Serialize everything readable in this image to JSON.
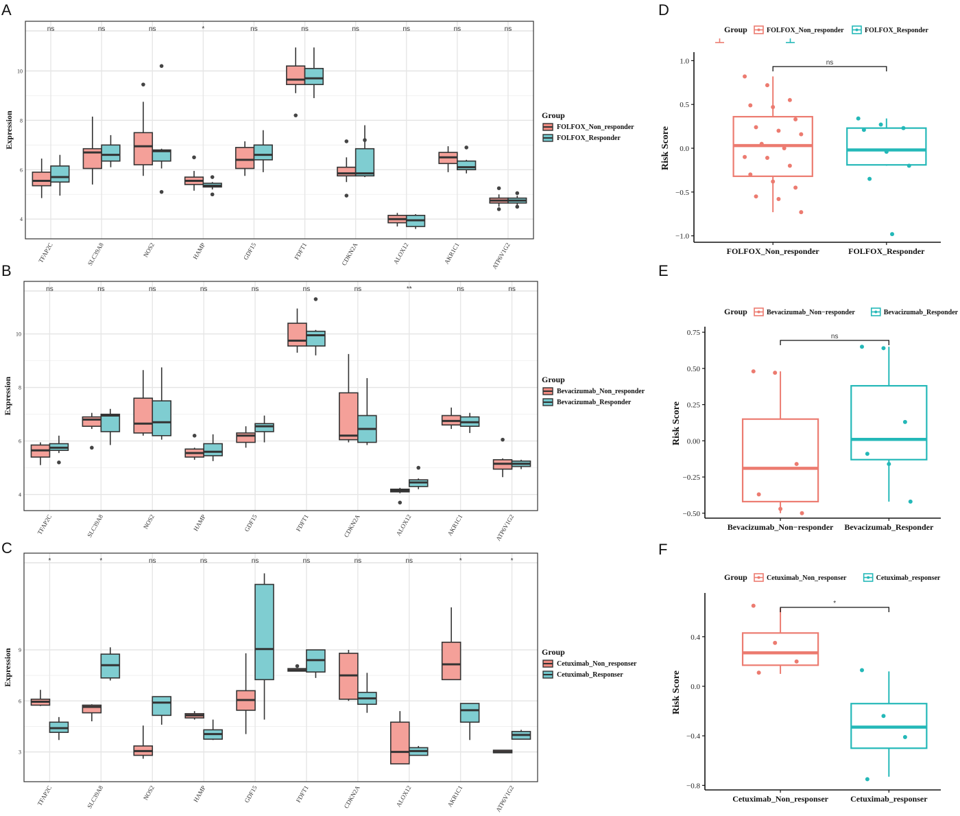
{
  "chart_data": [
    {
      "panel": "A",
      "type": "boxplot",
      "ylabel": "Expression",
      "ylim": [
        3.2,
        11.4
      ],
      "yticks": [
        4,
        6,
        8,
        10
      ],
      "legend": {
        "title": "Group",
        "items": [
          "FOLFOX_Non_responder",
          "FOLFOX_Responder"
        ],
        "colors": [
          "#F08A80",
          "#72C7CC"
        ]
      },
      "genes": [
        "TFAP2C",
        "SLC39A8",
        "NOS2",
        "HAMP",
        "GDF15",
        "FDFT1",
        "CDKN2A",
        "ALOX12",
        "AKR1C1",
        "ATP6V1G2"
      ],
      "significance": [
        "ns",
        "ns",
        "ns",
        "*",
        "ns",
        "ns",
        "ns",
        "ns",
        "ns",
        "ns"
      ],
      "series": [
        {
          "name": "FOLFOX_Non_responder",
          "boxes": [
            {
              "q1": 5.35,
              "median": 5.55,
              "q3": 5.9,
              "lo": 4.85,
              "hi": 6.45,
              "out": []
            },
            {
              "q1": 6.05,
              "median": 6.7,
              "q3": 6.85,
              "lo": 5.4,
              "hi": 8.15,
              "out": []
            },
            {
              "q1": 6.2,
              "median": 6.95,
              "q3": 7.5,
              "lo": 5.75,
              "hi": 8.75,
              "out": [
                9.45
              ]
            },
            {
              "q1": 5.4,
              "median": 5.55,
              "q3": 5.7,
              "lo": 5.15,
              "hi": 5.95,
              "out": [
                6.5
              ]
            },
            {
              "q1": 6.05,
              "median": 6.4,
              "q3": 6.9,
              "lo": 5.75,
              "hi": 7.15,
              "out": []
            },
            {
              "q1": 9.45,
              "median": 9.65,
              "q3": 10.2,
              "lo": 9.1,
              "hi": 10.95,
              "out": [
                8.2
              ]
            },
            {
              "q1": 5.75,
              "median": 5.85,
              "q3": 6.1,
              "lo": 5.5,
              "hi": 6.5,
              "out": [
                4.95,
                7.15
              ]
            },
            {
              "q1": 3.85,
              "median": 4.0,
              "q3": 4.15,
              "lo": 3.7,
              "hi": 4.25,
              "out": []
            },
            {
              "q1": 6.25,
              "median": 6.5,
              "q3": 6.7,
              "lo": 5.9,
              "hi": 6.95,
              "out": []
            },
            {
              "q1": 4.65,
              "median": 4.75,
              "q3": 4.85,
              "lo": 4.5,
              "hi": 5.0,
              "out": [
                4.4,
                5.25
              ]
            }
          ]
        },
        {
          "name": "FOLFOX_Responder",
          "boxes": [
            {
              "q1": 5.5,
              "median": 5.7,
              "q3": 6.15,
              "lo": 4.95,
              "hi": 6.6,
              "out": []
            },
            {
              "q1": 6.35,
              "median": 6.6,
              "q3": 7.0,
              "lo": 6.1,
              "hi": 7.4,
              "out": []
            },
            {
              "q1": 6.35,
              "median": 6.75,
              "q3": 6.8,
              "lo": 6.05,
              "hi": 6.85,
              "out": [
                5.1,
                10.2
              ]
            },
            {
              "q1": 5.3,
              "median": 5.35,
              "q3": 5.45,
              "lo": 5.2,
              "hi": 5.5,
              "out": [
                5.0,
                5.7
              ]
            },
            {
              "q1": 6.4,
              "median": 6.6,
              "q3": 7.0,
              "lo": 5.9,
              "hi": 7.6,
              "out": []
            },
            {
              "q1": 9.45,
              "median": 9.7,
              "q3": 10.1,
              "lo": 8.9,
              "hi": 10.95,
              "out": []
            },
            {
              "q1": 5.75,
              "median": 5.85,
              "q3": 6.85,
              "lo": 5.7,
              "hi": 7.8,
              "out": [
                7.2
              ]
            },
            {
              "q1": 3.7,
              "median": 3.95,
              "q3": 4.15,
              "lo": 3.6,
              "hi": 4.2,
              "out": []
            },
            {
              "q1": 6.0,
              "median": 6.1,
              "q3": 6.35,
              "lo": 5.85,
              "hi": 6.4,
              "out": [
                6.9
              ]
            },
            {
              "q1": 4.65,
              "median": 4.75,
              "q3": 4.85,
              "lo": 4.55,
              "hi": 4.95,
              "out": [
                4.5,
                5.05
              ]
            }
          ]
        }
      ]
    },
    {
      "panel": "B",
      "type": "boxplot",
      "ylabel": "Expression",
      "ylim": [
        3.4,
        11.4
      ],
      "yticks": [
        4,
        6,
        8,
        10
      ],
      "legend": {
        "title": "Group",
        "items": [
          "Bevacizumab_Non_responder",
          "Bevacizumab_Responder"
        ],
        "colors": [
          "#F08A80",
          "#72C7CC"
        ]
      },
      "genes": [
        "TFAP2C",
        "SLC39A8",
        "NOS2",
        "HAMP",
        "GDF15",
        "FDFT1",
        "CDKN2A",
        "ALOX12",
        "AKR1C1",
        "ATP6V1G2"
      ],
      "significance": [
        "ns",
        "ns",
        "ns",
        "ns",
        "ns",
        "ns",
        "ns",
        "**",
        "ns",
        "ns"
      ],
      "series": [
        {
          "name": "Bevacizumab_Non_responder",
          "boxes": [
            {
              "q1": 5.4,
              "median": 5.65,
              "q3": 5.85,
              "lo": 5.1,
              "hi": 5.95,
              "out": []
            },
            {
              "q1": 6.55,
              "median": 6.8,
              "q3": 6.9,
              "lo": 6.45,
              "hi": 7.05,
              "out": [
                5.75
              ]
            },
            {
              "q1": 6.3,
              "median": 6.65,
              "q3": 7.6,
              "lo": 6.2,
              "hi": 8.65,
              "out": []
            },
            {
              "q1": 5.4,
              "median": 5.55,
              "q3": 5.7,
              "lo": 5.3,
              "hi": 5.75,
              "out": [
                6.2
              ]
            },
            {
              "q1": 5.95,
              "median": 6.2,
              "q3": 6.3,
              "lo": 5.75,
              "hi": 6.55,
              "out": []
            },
            {
              "q1": 9.55,
              "median": 9.75,
              "q3": 10.4,
              "lo": 9.3,
              "hi": 10.95,
              "out": []
            },
            {
              "q1": 6.05,
              "median": 6.2,
              "q3": 7.8,
              "lo": 5.95,
              "hi": 9.25,
              "out": []
            },
            {
              "q1": 4.1,
              "median": 4.15,
              "q3": 4.2,
              "lo": 4.05,
              "hi": 4.25,
              "out": [
                3.7
              ]
            },
            {
              "q1": 6.6,
              "median": 6.75,
              "q3": 6.95,
              "lo": 6.45,
              "hi": 7.25,
              "out": []
            },
            {
              "q1": 4.95,
              "median": 5.15,
              "q3": 5.3,
              "lo": 4.65,
              "hi": 5.35,
              "out": [
                6.05
              ]
            }
          ]
        },
        {
          "name": "Bevacizumab_Responder",
          "boxes": [
            {
              "q1": 5.65,
              "median": 5.75,
              "q3": 5.9,
              "lo": 5.55,
              "hi": 6.2,
              "out": [
                5.2
              ]
            },
            {
              "q1": 6.35,
              "median": 6.95,
              "q3": 7.0,
              "lo": 5.85,
              "hi": 7.2,
              "out": []
            },
            {
              "q1": 6.2,
              "median": 6.7,
              "q3": 7.5,
              "lo": 6.05,
              "hi": 8.75,
              "out": []
            },
            {
              "q1": 5.45,
              "median": 5.6,
              "q3": 5.9,
              "lo": 5.25,
              "hi": 6.25,
              "out": []
            },
            {
              "q1": 6.35,
              "median": 6.55,
              "q3": 6.65,
              "lo": 5.95,
              "hi": 6.95,
              "out": []
            },
            {
              "q1": 9.55,
              "median": 9.95,
              "q3": 10.1,
              "lo": 9.2,
              "hi": 10.15,
              "out": [
                11.3
              ]
            },
            {
              "q1": 5.95,
              "median": 6.45,
              "q3": 6.95,
              "lo": 5.85,
              "hi": 8.35,
              "out": []
            },
            {
              "q1": 4.3,
              "median": 4.45,
              "q3": 4.55,
              "lo": 4.2,
              "hi": 4.6,
              "out": [
                5.0
              ]
            },
            {
              "q1": 6.55,
              "median": 6.7,
              "q3": 6.9,
              "lo": 6.3,
              "hi": 7.05,
              "out": []
            },
            {
              "q1": 5.05,
              "median": 5.15,
              "q3": 5.25,
              "lo": 4.95,
              "hi": 5.3,
              "out": []
            }
          ]
        }
      ]
    },
    {
      "panel": "C",
      "type": "boxplot",
      "ylabel": "Expression",
      "ylim": [
        1.25,
        13.8
      ],
      "yticks": [
        3,
        6,
        9
      ],
      "legend": {
        "title": "Group",
        "items": [
          "Cetuximab_Non_responser",
          "Cetuximab_Responser"
        ],
        "colors": [
          "#F08A80",
          "#72C7CC"
        ]
      },
      "genes": [
        "TFAP2C",
        "SLC39A8",
        "NOS2",
        "HAMP",
        "GDF15",
        "FDFT1",
        "CDKN2A",
        "ALOX12",
        "AKR1C1",
        "ATP6V1G2"
      ],
      "significance": [
        "*",
        "*",
        "ns",
        "ns",
        "ns",
        "ns",
        "ns",
        "ns",
        "*",
        "*"
      ],
      "series": [
        {
          "name": "Cetuximab_Non_responser",
          "boxes": [
            {
              "q1": 5.75,
              "median": 5.95,
              "q3": 6.1,
              "lo": 5.7,
              "hi": 6.65,
              "out": []
            },
            {
              "q1": 5.3,
              "median": 5.65,
              "q3": 5.75,
              "lo": 4.8,
              "hi": 5.8,
              "out": []
            },
            {
              "q1": 2.8,
              "median": 3.05,
              "q3": 3.35,
              "lo": 2.6,
              "hi": 4.55,
              "out": []
            },
            {
              "q1": 5.0,
              "median": 5.15,
              "q3": 5.25,
              "lo": 4.9,
              "hi": 5.4,
              "out": []
            },
            {
              "q1": 5.45,
              "median": 6.05,
              "q3": 6.6,
              "lo": 4.05,
              "hi": 8.8,
              "out": []
            },
            {
              "q1": 7.75,
              "median": 7.8,
              "q3": 7.9,
              "lo": 7.75,
              "hi": 7.9,
              "out": [
                8.05
              ]
            },
            {
              "q1": 6.1,
              "median": 7.5,
              "q3": 8.8,
              "lo": 6.0,
              "hi": 9.0,
              "out": []
            },
            {
              "q1": 2.3,
              "median": 3.0,
              "q3": 4.75,
              "lo": 2.3,
              "hi": 5.4,
              "out": []
            },
            {
              "q1": 7.25,
              "median": 8.15,
              "q3": 9.45,
              "lo": 7.25,
              "hi": 11.5,
              "out": []
            },
            {
              "q1": 2.95,
              "median": 3.0,
              "q3": 3.1,
              "lo": 2.95,
              "hi": 3.1,
              "out": []
            }
          ]
        },
        {
          "name": "Cetuximab_Responser",
          "boxes": [
            {
              "q1": 4.15,
              "median": 4.4,
              "q3": 4.75,
              "lo": 3.7,
              "hi": 5.05,
              "out": []
            },
            {
              "q1": 7.35,
              "median": 8.1,
              "q3": 8.75,
              "lo": 7.2,
              "hi": 9.15,
              "out": []
            },
            {
              "q1": 5.15,
              "median": 5.9,
              "q3": 6.25,
              "lo": 4.6,
              "hi": 6.25,
              "out": []
            },
            {
              "q1": 3.75,
              "median": 4.05,
              "q3": 4.3,
              "lo": 3.7,
              "hi": 4.9,
              "out": []
            },
            {
              "q1": 7.25,
              "median": 9.05,
              "q3": 12.85,
              "lo": 4.9,
              "hi": 13.5,
              "out": []
            },
            {
              "q1": 7.7,
              "median": 8.4,
              "q3": 9.0,
              "lo": 7.35,
              "hi": 9.0,
              "out": []
            },
            {
              "q1": 5.8,
              "median": 6.15,
              "q3": 6.5,
              "lo": 5.3,
              "hi": 7.65,
              "out": []
            },
            {
              "q1": 2.8,
              "median": 3.05,
              "q3": 3.25,
              "lo": 2.8,
              "hi": 3.35,
              "out": []
            },
            {
              "q1": 4.75,
              "median": 5.45,
              "q3": 5.85,
              "lo": 3.7,
              "hi": 5.85,
              "out": []
            },
            {
              "q1": 3.75,
              "median": 4.0,
              "q3": 4.2,
              "lo": 3.75,
              "hi": 4.3,
              "out": []
            }
          ]
        }
      ]
    },
    {
      "panel": "D",
      "type": "boxplot-jitter",
      "ylabel": "Risk Score",
      "ylim": [
        -1.05,
        1.05
      ],
      "yticks": [
        -1.0,
        -0.5,
        0.0,
        0.5,
        1.0
      ],
      "ytick_labels": [
        "−1.0",
        "−0.5",
        "0.0",
        "0.5",
        "1.0"
      ],
      "categories": [
        "FOLFOX_Non_responder",
        "FOLFOX_Responder"
      ],
      "legend": {
        "title": "Group",
        "items": [
          "FOLFOX_Non_responder",
          "FOLFOX_Responder"
        ]
      },
      "significance": "ns",
      "boxes": [
        {
          "q1": -0.32,
          "median": 0.03,
          "q3": 0.36,
          "lo": -0.73,
          "hi": 0.82,
          "points": [
            0.82,
            0.72,
            0.55,
            0.49,
            0.47,
            0.33,
            0.24,
            0.2,
            0.16,
            0.05,
            0.0,
            -0.1,
            -0.11,
            -0.2,
            -0.3,
            -0.38,
            -0.45,
            -0.55,
            -0.58,
            -0.73
          ]
        },
        {
          "q1": -0.19,
          "median": -0.02,
          "q3": 0.23,
          "lo": -0.2,
          "hi": 0.34,
          "points": [
            0.34,
            0.27,
            0.23,
            0.21,
            -0.04,
            -0.2,
            -0.35,
            -0.98
          ]
        }
      ]
    },
    {
      "panel": "E",
      "type": "boxplot-jitter",
      "ylabel": "Risk Score",
      "ylim": [
        -0.52,
        0.76
      ],
      "yticks": [
        -0.5,
        -0.25,
        0.0,
        0.25,
        0.5,
        0.75
      ],
      "ytick_labels": [
        "−0.50",
        "−0.25",
        "0.00",
        "0.25",
        "0.50",
        "0.75"
      ],
      "categories": [
        "Bevacizumab_Non−responder",
        "Bevacizumab_Responder"
      ],
      "legend": {
        "title": "Group",
        "items": [
          "Bevacizumab_Non−responder",
          "Bevacizumab_Responder"
        ]
      },
      "significance": "ns",
      "boxes": [
        {
          "q1": -0.42,
          "median": -0.19,
          "q3": 0.15,
          "lo": -0.5,
          "hi": 0.48,
          "points": [
            0.48,
            0.47,
            -0.16,
            -0.37,
            -0.47,
            -0.5
          ]
        },
        {
          "q1": -0.13,
          "median": 0.01,
          "q3": 0.38,
          "lo": -0.42,
          "hi": 0.65,
          "points": [
            0.65,
            0.64,
            0.13,
            -0.09,
            -0.16,
            -0.42
          ]
        }
      ]
    },
    {
      "panel": "F",
      "type": "boxplot-jitter",
      "ylabel": "Risk Score",
      "ylim": [
        -0.82,
        0.72
      ],
      "yticks": [
        -0.8,
        -0.4,
        0.0,
        0.4
      ],
      "ytick_labels": [
        "−0.8",
        "−0.4",
        "0.0",
        "0.4"
      ],
      "categories": [
        "Cetuximab_Non_responser",
        "Cetuximab_responser"
      ],
      "legend": {
        "title": "Group",
        "items": [
          "Cetuximab_Non_responser",
          "Cetuximab_responser"
        ]
      },
      "significance": "*",
      "boxes": [
        {
          "q1": 0.17,
          "median": 0.27,
          "q3": 0.43,
          "lo": 0.1,
          "hi": 0.63,
          "points": [
            0.65,
            0.35,
            0.2,
            0.11
          ]
        },
        {
          "q1": -0.5,
          "median": -0.33,
          "q3": -0.14,
          "lo": -0.73,
          "hi": 0.12,
          "points": [
            0.13,
            -0.24,
            -0.41,
            -0.75
          ]
        }
      ]
    }
  ],
  "colors": {
    "non_responder_fill": "#F4A099",
    "responder_fill": "#7FCDD1",
    "box_border_dark": "#333333",
    "risk_non": "#EC7B70",
    "risk_res": "#24B8B8"
  }
}
